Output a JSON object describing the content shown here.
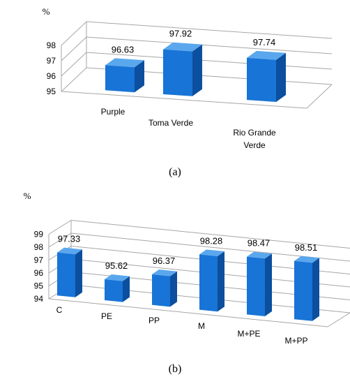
{
  "colors": {
    "bar_front": "#1874d6",
    "bar_top": "#5aa7ee",
    "bar_side": "#0c4f9e",
    "grid": "#a6a6a6"
  },
  "chart_data": [
    {
      "type": "bar",
      "panel_label": "(a)",
      "unit_label": "%",
      "categories": [
        "Purple",
        "Toma Verde",
        "Rio Grande Verde"
      ],
      "values": [
        96.63,
        97.92,
        97.74
      ],
      "data_labels": [
        "96.63",
        "97.92",
        "97.74"
      ],
      "ylim": [
        95,
        98
      ],
      "yticks": [
        95,
        96,
        97,
        98
      ],
      "grid": true,
      "style": "3d-column"
    },
    {
      "type": "bar",
      "panel_label": "(b)",
      "unit_label": "%",
      "categories": [
        "C",
        "PE",
        "PP",
        "M",
        "M+PE",
        "M+PP"
      ],
      "values": [
        97.33,
        95.62,
        96.37,
        98.28,
        98.47,
        98.51
      ],
      "data_labels": [
        "97.33",
        "95.62",
        "96.37",
        "98.28",
        "98.47",
        "98.51"
      ],
      "ylim": [
        94,
        99
      ],
      "yticks": [
        94,
        95,
        96,
        97,
        98,
        99
      ],
      "grid": true,
      "style": "3d-column"
    }
  ]
}
